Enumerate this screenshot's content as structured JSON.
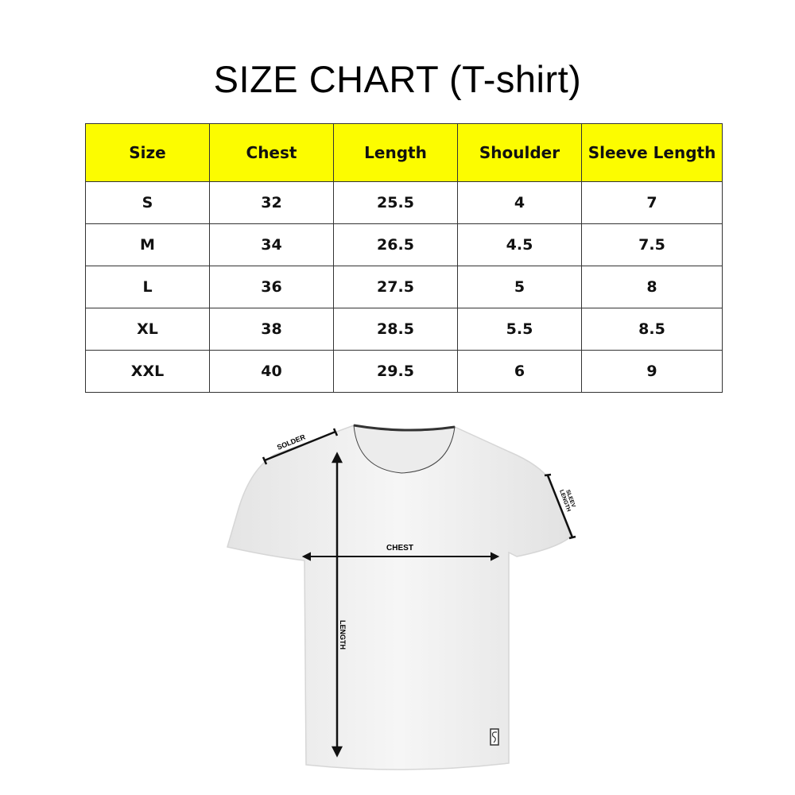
{
  "title": "SIZE CHART (T-shirt)",
  "colors": {
    "header_bg": "#fcfc00",
    "border": "#333333"
  },
  "table": {
    "headers": [
      "Size",
      "Chest",
      "Length",
      "Shoulder",
      "Sleeve Length"
    ],
    "rows": [
      [
        "S",
        "32",
        "25.5",
        "4",
        "7"
      ],
      [
        "M",
        "34",
        "26.5",
        "4.5",
        "7.5"
      ],
      [
        "L",
        "36",
        "27.5",
        "5",
        "8"
      ],
      [
        "XL",
        "38",
        "28.5",
        "5.5",
        "8.5"
      ],
      [
        "XXL",
        "40",
        "29.5",
        "6",
        "9"
      ]
    ]
  },
  "diagram": {
    "shoulder_label": "SOLDER",
    "sleeve_label_line1": "SLEEV",
    "sleeve_label_line2": "LENGTH",
    "chest_label": "CHEST",
    "length_label": "LENGTH"
  }
}
